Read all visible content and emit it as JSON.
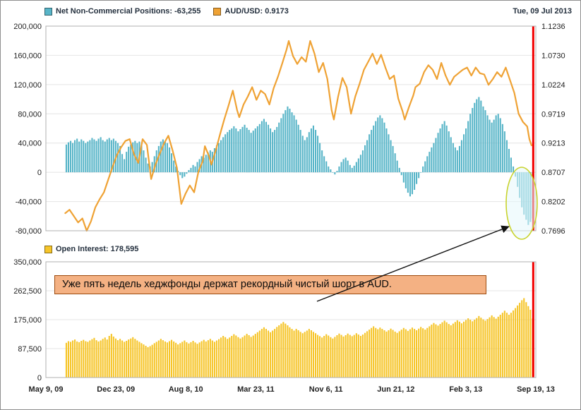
{
  "header": {
    "date_label": "Tue, 09 Jul 2013"
  },
  "legends": {
    "net": "Net Non-Commercial Positions: -63,255",
    "audusd": "AUD/USD: 0.9173",
    "open_interest": "Open Interest: 178,595"
  },
  "annotation": {
    "text": "Уже пять недель хеджфонды держат рекордный чистый шорт в AUD."
  },
  "colors": {
    "net_bars": "#58b5c8",
    "price_line": "#efa234",
    "oi_bars": "#f6c52a",
    "marker_line": "#f20000",
    "highlight_ellipse": "#c9d32e",
    "grid": "#e4e4e4",
    "plot_border": "#b0b0b0"
  },
  "chart_data": [
    {
      "type": "bar",
      "name": "net_noncommercial_positions_with_audusd",
      "x_axis": {
        "weeks_total": 228,
        "data_start_week": 9,
        "tick_weeks": [
          0,
          32.6,
          65.1,
          97.7,
          130.3,
          162.9,
          195.4,
          228
        ],
        "tick_labels": [
          "May 9, 09",
          "Dec 23, 09",
          "Aug 8, 10",
          "Mar 23, 11",
          "Nov 6, 11",
          "Jun 21, 12",
          "Feb 3, 13",
          "Sep 19, 13"
        ]
      },
      "y_left": {
        "min": -80000,
        "max": 200000,
        "tick_labels": [
          "200,000",
          "160,000",
          "120,000",
          "80,000",
          "40,000",
          "0",
          "-40,000",
          "-80,000"
        ]
      },
      "y_right": {
        "min": 0.7696,
        "max": 1.1236,
        "tick_labels": [
          "1.1236",
          "1.0730",
          "1.0224",
          "0.9719",
          "0.9213",
          "0.8707",
          "0.8202",
          "0.7696"
        ]
      },
      "marker_week": 226.8,
      "bar_series": {
        "name": "Net Non-Commercial Positions",
        "latest": -63255,
        "color_key": "net_bars",
        "values": [
          38000,
          41000,
          43000,
          40000,
          44000,
          46000,
          42000,
          45000,
          43000,
          40000,
          42000,
          44000,
          47000,
          45000,
          43000,
          46000,
          48000,
          44000,
          42000,
          45000,
          47000,
          44000,
          46000,
          43000,
          40000,
          36000,
          25000,
          18000,
          28000,
          35000,
          38000,
          41000,
          43000,
          40000,
          42000,
          38000,
          30000,
          20000,
          12000,
          8000,
          14000,
          22000,
          30000,
          36000,
          42000,
          45000,
          43000,
          40000,
          34000,
          26000,
          16000,
          8000,
          2000,
          -4000,
          -8000,
          -6000,
          -2000,
          3000,
          6000,
          10000,
          8000,
          14000,
          18000,
          22000,
          20000,
          24000,
          27000,
          30000,
          28000,
          33000,
          37000,
          40000,
          44000,
          48000,
          52000,
          55000,
          58000,
          60000,
          63000,
          60000,
          56000,
          59000,
          62000,
          65000,
          61000,
          58000,
          54000,
          57000,
          60000,
          63000,
          66000,
          70000,
          73000,
          69000,
          65000,
          60000,
          55000,
          58000,
          62000,
          68000,
          74000,
          80000,
          85000,
          90000,
          87000,
          82000,
          78000,
          72000,
          65000,
          58000,
          50000,
          44000,
          48000,
          55000,
          60000,
          64000,
          58000,
          50000,
          40000,
          30000,
          22000,
          15000,
          8000,
          4000,
          0,
          -3000,
          2000,
          8000,
          14000,
          18000,
          20000,
          16000,
          10000,
          6000,
          9000,
          14000,
          19000,
          24000,
          30000,
          37000,
          44000,
          52000,
          58000,
          64000,
          70000,
          75000,
          78000,
          74000,
          68000,
          60000,
          52000,
          44000,
          36000,
          26000,
          16000,
          6000,
          -4000,
          -14000,
          -22000,
          -28000,
          -33000,
          -30000,
          -24000,
          -16000,
          -8000,
          0,
          8000,
          15000,
          22000,
          28000,
          34000,
          40000,
          47000,
          54000,
          60000,
          66000,
          70000,
          64000,
          56000,
          48000,
          40000,
          34000,
          30000,
          36000,
          44000,
          52000,
          60000,
          70000,
          80000,
          88000,
          95000,
          100000,
          103000,
          98000,
          90000,
          85000,
          78000,
          72000,
          68000,
          72000,
          78000,
          80000,
          74000,
          66000,
          56000,
          44000,
          32000,
          20000,
          8000,
          -6000,
          -20000,
          -35000,
          -48000,
          -58000,
          -65000,
          -72000,
          -68000,
          -63255
        ]
      },
      "line_series": {
        "name": "AUD/USD",
        "latest": 0.9173,
        "color_key": "price_line",
        "points": [
          [
            0,
            0.8
          ],
          [
            2,
            0.806
          ],
          [
            4,
            0.795
          ],
          [
            6,
            0.784
          ],
          [
            8,
            0.791
          ],
          [
            10,
            0.7696
          ],
          [
            12,
            0.786
          ],
          [
            14,
            0.81
          ],
          [
            16,
            0.824
          ],
          [
            18,
            0.836
          ],
          [
            20,
            0.858
          ],
          [
            22,
            0.88
          ],
          [
            24,
            0.9
          ],
          [
            26,
            0.914
          ],
          [
            28,
            0.925
          ],
          [
            30,
            0.928
          ],
          [
            32,
            0.902
          ],
          [
            34,
            0.887
          ],
          [
            36,
            0.928
          ],
          [
            38,
            0.918
          ],
          [
            40,
            0.859
          ],
          [
            42,
            0.884
          ],
          [
            44,
            0.903
          ],
          [
            46,
            0.921
          ],
          [
            48,
            0.934
          ],
          [
            50,
            0.908
          ],
          [
            52,
            0.878
          ],
          [
            54,
            0.816
          ],
          [
            56,
            0.834
          ],
          [
            58,
            0.848
          ],
          [
            60,
            0.836
          ],
          [
            62,
            0.872
          ],
          [
            64,
            0.89
          ],
          [
            65,
            0.916
          ],
          [
            67,
            0.898
          ],
          [
            68,
            0.884
          ],
          [
            70,
            0.908
          ],
          [
            72,
            0.936
          ],
          [
            74,
            0.962
          ],
          [
            76,
            0.986
          ],
          [
            78,
            1.012
          ],
          [
            80,
            0.978
          ],
          [
            81,
            0.966
          ],
          [
            83,
            0.988
          ],
          [
            85,
            1.002
          ],
          [
            87,
            1.018
          ],
          [
            89,
            0.996
          ],
          [
            91,
            1.012
          ],
          [
            93,
            1.006
          ],
          [
            95,
            0.988
          ],
          [
            97,
            1.016
          ],
          [
            99,
            1.036
          ],
          [
            101,
            1.059
          ],
          [
            103,
            1.083
          ],
          [
            104,
            1.098
          ],
          [
            106,
            1.072
          ],
          [
            108,
            1.058
          ],
          [
            110,
            1.07
          ],
          [
            112,
            1.062
          ],
          [
            114,
            1.098
          ],
          [
            116,
            1.076
          ],
          [
            118,
            1.044
          ],
          [
            120,
            1.06
          ],
          [
            122,
            1.032
          ],
          [
            124,
            0.978
          ],
          [
            125,
            0.962
          ],
          [
            127,
            1.002
          ],
          [
            129,
            1.034
          ],
          [
            131,
            1.018
          ],
          [
            133,
            0.972
          ],
          [
            135,
            1.002
          ],
          [
            137,
            1.024
          ],
          [
            139,
            1.048
          ],
          [
            141,
            1.062
          ],
          [
            143,
            1.076
          ],
          [
            145,
            1.058
          ],
          [
            147,
            1.074
          ],
          [
            149,
            1.052
          ],
          [
            151,
            1.032
          ],
          [
            153,
            1.038
          ],
          [
            155,
            0.998
          ],
          [
            157,
            0.976
          ],
          [
            158,
            0.962
          ],
          [
            160,
            0.984
          ],
          [
            162,
            1.004
          ],
          [
            163,
            1.018
          ],
          [
            165,
            1.024
          ],
          [
            167,
            1.044
          ],
          [
            169,
            1.056
          ],
          [
            171,
            1.048
          ],
          [
            173,
            1.032
          ],
          [
            175,
            1.06
          ],
          [
            177,
            1.038
          ],
          [
            179,
            1.022
          ],
          [
            181,
            1.036
          ],
          [
            183,
            1.042
          ],
          [
            185,
            1.048
          ],
          [
            187,
            1.052
          ],
          [
            189,
            1.038
          ],
          [
            191,
            1.052
          ],
          [
            193,
            1.042
          ],
          [
            195,
            1.04
          ],
          [
            197,
            1.022
          ],
          [
            199,
            1.032
          ],
          [
            201,
            1.044
          ],
          [
            203,
            1.036
          ],
          [
            205,
            1.052
          ],
          [
            207,
            1.03
          ],
          [
            209,
            1.008
          ],
          [
            211,
            0.972
          ],
          [
            213,
            0.958
          ],
          [
            215,
            0.95
          ],
          [
            216,
            0.928
          ],
          [
            217,
            0.9173
          ]
        ]
      }
    },
    {
      "type": "bar",
      "name": "open_interest",
      "y_left": {
        "min": 0,
        "max": 350000,
        "tick_labels": [
          "350,000",
          "262,500",
          "175,000",
          "87,500",
          "0"
        ]
      },
      "marker_week": 226.8,
      "bar_series": {
        "name": "Open Interest",
        "latest": 178595,
        "color_key": "oi_bars",
        "values": [
          105000,
          110000,
          108000,
          112000,
          115000,
          109000,
          107000,
          111000,
          114000,
          110000,
          108000,
          112000,
          116000,
          120000,
          113000,
          109000,
          112000,
          117000,
          121000,
          115000,
          126000,
          132000,
          124000,
          118000,
          113000,
          117000,
          112000,
          108000,
          111000,
          115000,
          118000,
          122000,
          117000,
          112000,
          108000,
          104000,
          100000,
          96000,
          92000,
          95000,
          99000,
          104000,
          108000,
          112000,
          117000,
          113000,
          109000,
          106000,
          110000,
          114000,
          109000,
          105000,
          100000,
          104000,
          108000,
          112000,
          107000,
          103000,
          107000,
          111000,
          106000,
          102000,
          106000,
          110000,
          114000,
          109000,
          113000,
          117000,
          112000,
          108000,
          112000,
          116000,
          121000,
          126000,
          122000,
          117000,
          121000,
          126000,
          131000,
          127000,
          122000,
          118000,
          122000,
          127000,
          132000,
          128000,
          123000,
          127000,
          132000,
          137000,
          142000,
          147000,
          152000,
          147000,
          142000,
          137000,
          142000,
          147000,
          153000,
          158000,
          163000,
          168000,
          163000,
          158000,
          152000,
          147000,
          142000,
          147000,
          143000,
          138000,
          134000,
          138000,
          142000,
          147000,
          143000,
          138000,
          134000,
          129000,
          125000,
          121000,
          126000,
          131000,
          127000,
          122000,
          118000,
          123000,
          128000,
          133000,
          129000,
          124000,
          128000,
          133000,
          129000,
          125000,
          129000,
          134000,
          130000,
          126000,
          130000,
          135000,
          140000,
          145000,
          150000,
          155000,
          150000,
          146000,
          151000,
          147000,
          143000,
          139000,
          143000,
          148000,
          144000,
          139000,
          135000,
          140000,
          145000,
          150000,
          146000,
          141000,
          146000,
          151000,
          147000,
          143000,
          148000,
          153000,
          149000,
          145000,
          150000,
          155000,
          160000,
          165000,
          161000,
          157000,
          162000,
          167000,
          172000,
          167000,
          162000,
          158000,
          163000,
          168000,
          173000,
          169000,
          164000,
          169000,
          174000,
          179000,
          175000,
          170000,
          175000,
          180000,
          186000,
          181000,
          176000,
          172000,
          177000,
          182000,
          188000,
          183000,
          178000,
          184000,
          190000,
          196000,
          202000,
          196000,
          190000,
          196000,
          203000,
          210000,
          218000,
          226000,
          234000,
          240000,
          228000,
          216000,
          205000,
          178595
        ]
      }
    }
  ]
}
